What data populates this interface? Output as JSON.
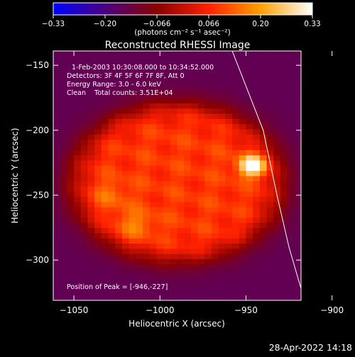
{
  "chart_data": {
    "type": "heatmap",
    "title": "Reconstructed RHESSI Image",
    "xlabel": "Heliocentric X (arcsec)",
    "ylabel": "Heliocentric Y (arcsec)",
    "xlim": [
      -1062,
      -918
    ],
    "ylim": [
      -331,
      -139
    ],
    "xticks": [
      -1050,
      -1000,
      -950,
      -900
    ],
    "xtick_labels": [
      "−1050",
      "−1000",
      "−950",
      "−900"
    ],
    "yticks": [
      -150,
      -200,
      -250,
      -300
    ],
    "ytick_labels": [
      "−150",
      "−200",
      "−250",
      "−300"
    ],
    "colorbar": {
      "min": -0.33,
      "max": 0.33,
      "tick_labels": [
        "−0.33",
        "−0.20",
        "−0.066",
        "0.066",
        "0.20",
        "0.33"
      ],
      "unit_label": "(photons cm⁻² s⁻¹ asec⁻²)",
      "colors": [
        "#0000ff",
        "#4b0082",
        "#8a0000",
        "#ff2000",
        "#ffa000",
        "#ffffff"
      ]
    },
    "annotations": {
      "time_range": "1-Feb-2003 10:30:08.000 to 10:34:52.000",
      "detectors": "Detectors: 3F 4F 5F 6F 7F 8F, Att 0",
      "energy_range": "Energy Range: 3.0 - 6.0 keV",
      "clean": "Clean    Total counts: 3.51E+04",
      "peak": "Position of Peak = [-946,-227]"
    },
    "peak_position": [
      -946,
      -227
    ],
    "peak_value": 0.33,
    "secondary_sources": [
      {
        "x": -1015,
        "y": -273,
        "value": 0.14
      },
      {
        "x": -1030,
        "y": -250,
        "value": 0.12
      }
    ],
    "disk_center": [
      -990,
      -240
    ],
    "disk_radius": 60,
    "limb_line": [
      [
        -958,
        -139
      ],
      [
        -940,
        -200
      ],
      [
        -932,
        -250
      ],
      [
        -925,
        -290
      ],
      [
        -916,
        -331
      ]
    ]
  },
  "footer": {
    "date": "28-Apr-2022 14:18"
  }
}
